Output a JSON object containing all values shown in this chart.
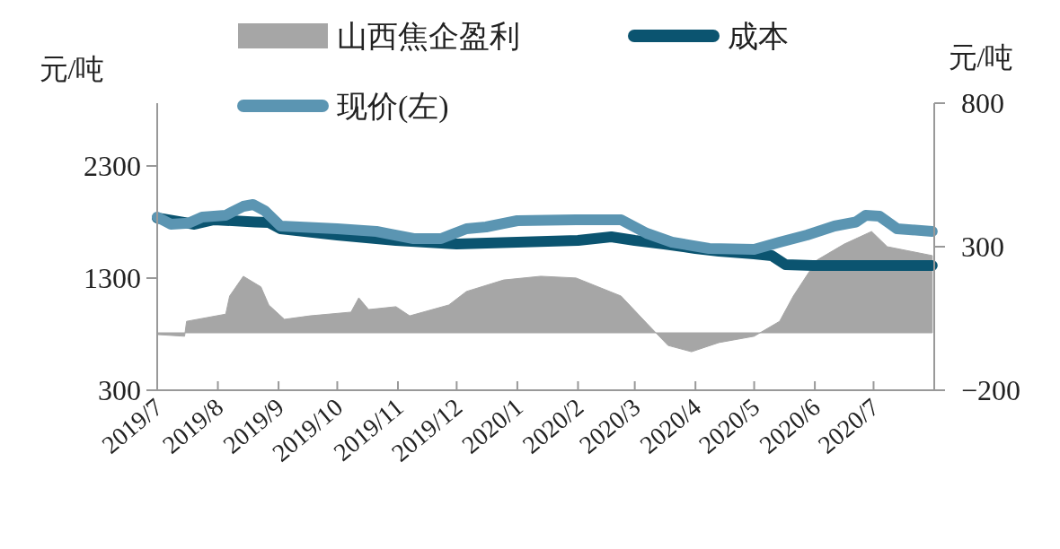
{
  "chart_data": {
    "type": "line",
    "ylabel": "元/吨",
    "y2label": "元/吨",
    "legend": "top",
    "xlim": [
      "2019-07-01",
      "2020-08-01"
    ],
    "xticks": [
      {
        "value": "2019-07-01",
        "label": "2019/7"
      },
      {
        "value": "2019-08-01",
        "label": "2019/8"
      },
      {
        "value": "2019-09-01",
        "label": "2019/9"
      },
      {
        "value": "2019-10-01",
        "label": "2019/10"
      },
      {
        "value": "2019-11-01",
        "label": "2019/11"
      },
      {
        "value": "2019-12-01",
        "label": "2019/12"
      },
      {
        "value": "2020-01-01",
        "label": "2020/1"
      },
      {
        "value": "2020-02-01",
        "label": "2020/2"
      },
      {
        "value": "2020-03-01",
        "label": "2020/3"
      },
      {
        "value": "2020-04-01",
        "label": "2020/4"
      },
      {
        "value": "2020-05-01",
        "label": "2020/5"
      },
      {
        "value": "2020-06-01",
        "label": "2020/6"
      },
      {
        "value": "2020-07-01",
        "label": "2020/7"
      },
      {
        "value": "2020-08-01",
        "label": null
      }
    ],
    "ylim": [
      300,
      2860
    ],
    "yticks": [
      300,
      1300,
      2300
    ],
    "y2lim": [
      -200,
      800
    ],
    "y2ticks": [
      -200,
      300,
      800
    ],
    "series": [
      {
        "name": "山西焦企盈利",
        "type": "area",
        "axis": "y2",
        "color": "#a6a6a6",
        "x": [
          "2019-07-01",
          "2019-07-15",
          "2019-07-16",
          "2019-08-05",
          "2019-08-07",
          "2019-08-14",
          "2019-08-23",
          "2019-08-27",
          "2019-09-04",
          "2019-09-17",
          "2019-10-08",
          "2019-10-12",
          "2019-10-17",
          "2019-10-31",
          "2019-11-07",
          "2019-11-27",
          "2019-12-06",
          "2019-12-25",
          "2020-01-13",
          "2020-01-31",
          "2020-02-23",
          "2020-03-07",
          "2020-03-18",
          "2020-03-30",
          "2020-04-13",
          "2020-05-01",
          "2020-05-14",
          "2020-05-21",
          "2020-06-02",
          "2020-06-16",
          "2020-06-30",
          "2020-07-08",
          "2020-07-31"
        ],
        "values": [
          -6,
          -12,
          40,
          65,
          128,
          197,
          160,
          97,
          47,
          59,
          72,
          122,
          81,
          91,
          59,
          97,
          144,
          184,
          197,
          191,
          128,
          34,
          -44,
          -66,
          -34,
          -12,
          40,
          128,
          253,
          309,
          353,
          300,
          269
        ]
      },
      {
        "name": "成本",
        "type": "line",
        "color": "#0b5470",
        "x": [
          "2019-07-01",
          "2019-07-20",
          "2019-07-30",
          "2019-08-20",
          "2019-08-27",
          "2019-09-02",
          "2019-10-01",
          "2019-10-31",
          "2019-12-01",
          "2020-01-01",
          "2020-02-01",
          "2020-02-18",
          "2020-03-01",
          "2020-03-16",
          "2020-04-01",
          "2020-04-13",
          "2020-05-01",
          "2020-05-10",
          "2020-05-17",
          "2020-05-31",
          "2020-07-31"
        ],
        "values": [
          1836,
          1780,
          1820,
          1800,
          1796,
          1740,
          1684,
          1636,
          1604,
          1620,
          1636,
          1668,
          1636,
          1604,
          1564,
          1540,
          1516,
          1500,
          1420,
          1412,
          1412
        ]
      },
      {
        "name": "现价(左)",
        "type": "line",
        "color": "#5b95b2",
        "x": [
          "2019-07-01",
          "2019-07-08",
          "2019-07-17",
          "2019-07-24",
          "2019-08-05",
          "2019-08-14",
          "2019-08-19",
          "2019-08-25",
          "2019-09-02",
          "2019-10-01",
          "2019-10-21",
          "2019-11-09",
          "2019-11-23",
          "2019-12-06",
          "2019-12-16",
          "2020-01-01",
          "2020-01-31",
          "2020-02-23",
          "2020-03-07",
          "2020-03-20",
          "2020-04-08",
          "2020-05-01",
          "2020-05-14",
          "2020-05-28",
          "2020-06-11",
          "2020-06-22",
          "2020-06-27",
          "2020-07-04",
          "2020-07-13",
          "2020-07-31"
        ],
        "values": [
          1844,
          1780,
          1790,
          1844,
          1860,
          1940,
          1956,
          1900,
          1764,
          1740,
          1716,
          1652,
          1652,
          1740,
          1756,
          1812,
          1820,
          1820,
          1700,
          1620,
          1564,
          1556,
          1620,
          1684,
          1764,
          1800,
          1860,
          1852,
          1740,
          1716
        ]
      }
    ]
  }
}
